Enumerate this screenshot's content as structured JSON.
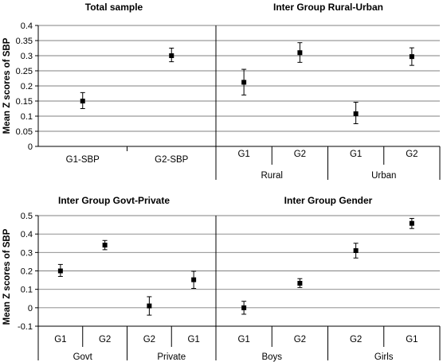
{
  "ylabel": "Mean Z scores of SBP",
  "chart_data": [
    {
      "type": "scatter",
      "title": "Total sample",
      "ylim": [
        0,
        0.4
      ],
      "yticks": [
        "0.4",
        "0.35",
        "0.3",
        "0.25",
        "0.2",
        "0.15",
        "0.1",
        "0.05",
        "0"
      ],
      "categories": [
        "G1-SBP",
        "G2-SBP"
      ],
      "groups": [],
      "points": [
        {
          "y": 0.15,
          "lo": 0.125,
          "hi": 0.178
        },
        {
          "y": 0.3,
          "lo": 0.28,
          "hi": 0.325
        }
      ]
    },
    {
      "type": "scatter",
      "title": "Inter Group Rural-Urban",
      "ylim": [
        0,
        0.4
      ],
      "yticks": [],
      "categories": [
        "G1",
        "G2",
        "G1",
        "G2"
      ],
      "groups": [
        "Rural",
        "Urban"
      ],
      "points": [
        {
          "y": 0.212,
          "lo": 0.17,
          "hi": 0.255
        },
        {
          "y": 0.31,
          "lo": 0.278,
          "hi": 0.343
        },
        {
          "y": 0.108,
          "lo": 0.075,
          "hi": 0.146
        },
        {
          "y": 0.297,
          "lo": 0.268,
          "hi": 0.326
        }
      ]
    },
    {
      "type": "scatter",
      "title": "Inter Group Govt-Private",
      "ylim": [
        -0.1,
        0.5
      ],
      "yticks": [
        "0.5",
        "0.4",
        "0.3",
        "0.2",
        "0.1",
        "0",
        "-0.1"
      ],
      "categories": [
        "G1",
        "G2",
        "G2",
        "G1"
      ],
      "groups": [
        "Govt",
        "Private"
      ],
      "points": [
        {
          "y": 0.2,
          "lo": 0.17,
          "hi": 0.235
        },
        {
          "y": 0.34,
          "lo": 0.315,
          "hi": 0.365
        },
        {
          "y": 0.01,
          "lo": -0.04,
          "hi": 0.06
        },
        {
          "y": 0.152,
          "lo": 0.105,
          "hi": 0.198
        }
      ]
    },
    {
      "type": "scatter",
      "title": "Inter Group Gender",
      "ylim": [
        -0.1,
        0.5
      ],
      "yticks": [],
      "categories": [
        "G1",
        "G2",
        "G2",
        "G1"
      ],
      "groups": [
        "Boys",
        "Girls"
      ],
      "points": [
        {
          "y": 0.0,
          "lo": -0.035,
          "hi": 0.035
        },
        {
          "y": 0.133,
          "lo": 0.11,
          "hi": 0.158
        },
        {
          "y": 0.31,
          "lo": 0.27,
          "hi": 0.35
        },
        {
          "y": 0.458,
          "lo": 0.43,
          "hi": 0.485
        }
      ]
    }
  ]
}
